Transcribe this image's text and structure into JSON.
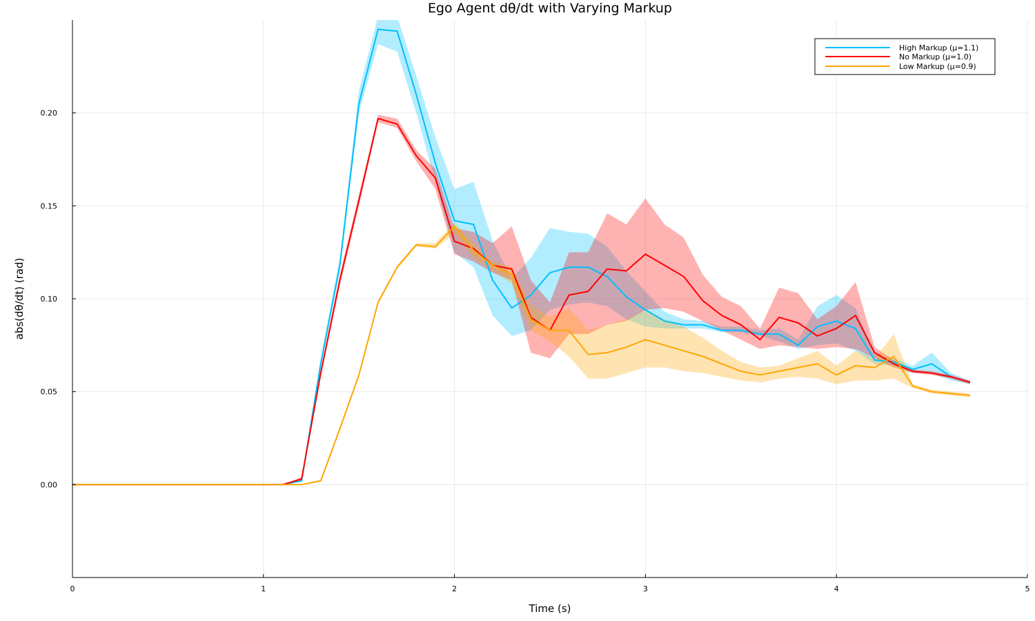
{
  "chart_data": {
    "type": "line",
    "title": "Ego Agent dθ/dt with Varying Markup",
    "xlabel": "Time (s)",
    "ylabel": "abs(dθ/dt) (rad)",
    "xlim": [
      0,
      5
    ],
    "ylim": [
      -0.05,
      0.25
    ],
    "xticks": [
      0,
      1,
      2,
      3,
      4,
      5
    ],
    "xtick_labels": [
      "0",
      "1",
      "2",
      "3",
      "4",
      "5"
    ],
    "yticks": [
      0.0,
      0.05,
      0.1,
      0.15,
      0.2
    ],
    "ytick_labels": [
      "0.00",
      "0.05",
      "0.10",
      "0.15",
      "0.20"
    ],
    "grid": true,
    "legend_position": "top-right",
    "x": [
      0,
      0.1,
      0.2,
      0.3,
      0.4,
      0.5,
      0.6,
      0.7,
      0.8,
      0.9,
      1.0,
      1.1,
      1.2,
      1.3,
      1.4,
      1.5,
      1.6,
      1.7,
      1.8,
      1.9,
      2.0,
      2.1,
      2.2,
      2.3,
      2.4,
      2.5,
      2.6,
      2.7,
      2.8,
      2.9,
      3.0,
      3.1,
      3.2,
      3.3,
      3.4,
      3.5,
      3.6,
      3.7,
      3.8,
      3.9,
      4.0,
      4.1,
      4.2,
      4.3,
      4.4,
      4.5,
      4.6,
      4.7
    ],
    "series": [
      {
        "name": "High Markup (μ=1.1)",
        "color": "#00bfff",
        "values": [
          0,
          0,
          0,
          0,
          0,
          0,
          0,
          0,
          0,
          0,
          0,
          0,
          0.002,
          0.065,
          0.118,
          0.205,
          0.245,
          0.244,
          0.21,
          0.173,
          0.142,
          0.14,
          0.11,
          0.095,
          0.102,
          0.114,
          0.117,
          0.117,
          0.112,
          0.101,
          0.094,
          0.088,
          0.086,
          0.086,
          0.083,
          0.083,
          0.081,
          0.081,
          0.075,
          0.085,
          0.088,
          0.084,
          0.067,
          0.066,
          0.062,
          0.065,
          0.058,
          0.055
        ],
        "lower": [
          0,
          0,
          0,
          0,
          0,
          0,
          0,
          0,
          0,
          0,
          0,
          0,
          0.002,
          0.063,
          0.115,
          0.2,
          0.237,
          0.233,
          0.2,
          0.163,
          0.125,
          0.117,
          0.091,
          0.08,
          0.083,
          0.094,
          0.097,
          0.098,
          0.096,
          0.089,
          0.085,
          0.084,
          0.084,
          0.084,
          0.082,
          0.082,
          0.08,
          0.077,
          0.073,
          0.075,
          0.076,
          0.072,
          0.065,
          0.064,
          0.06,
          0.06,
          0.056,
          0.054
        ],
        "upper": [
          0,
          0,
          0,
          0,
          0,
          0,
          0,
          0,
          0,
          0,
          0,
          0,
          0.003,
          0.068,
          0.122,
          0.212,
          0.252,
          0.252,
          0.22,
          0.187,
          0.159,
          0.163,
          0.131,
          0.111,
          0.122,
          0.138,
          0.136,
          0.135,
          0.128,
          0.115,
          0.104,
          0.093,
          0.089,
          0.088,
          0.085,
          0.085,
          0.083,
          0.084,
          0.078,
          0.096,
          0.102,
          0.095,
          0.07,
          0.068,
          0.064,
          0.071,
          0.06,
          0.056
        ]
      },
      {
        "name": "No Markup (μ=1.0)",
        "color": "#ff0000",
        "values": [
          0,
          0,
          0,
          0,
          0,
          0,
          0,
          0,
          0,
          0,
          0,
          0,
          0.003,
          0.06,
          0.11,
          0.153,
          0.197,
          0.194,
          0.177,
          0.165,
          0.131,
          0.127,
          0.118,
          0.116,
          0.09,
          0.083,
          0.102,
          0.104,
          0.116,
          0.115,
          0.124,
          0.118,
          0.112,
          0.099,
          0.091,
          0.086,
          0.078,
          0.09,
          0.087,
          0.08,
          0.084,
          0.091,
          0.071,
          0.065,
          0.061,
          0.06,
          0.058,
          0.055
        ],
        "lower": [
          0,
          0,
          0,
          0,
          0,
          0,
          0,
          0,
          0,
          0,
          0,
          0,
          0.002,
          0.058,
          0.107,
          0.15,
          0.195,
          0.192,
          0.174,
          0.159,
          0.124,
          0.12,
          0.114,
          0.11,
          0.071,
          0.068,
          0.081,
          0.081,
          0.086,
          0.088,
          0.094,
          0.095,
          0.093,
          0.088,
          0.083,
          0.078,
          0.073,
          0.075,
          0.074,
          0.073,
          0.074,
          0.073,
          0.068,
          0.063,
          0.06,
          0.059,
          0.057,
          0.054
        ],
        "upper": [
          0,
          0,
          0,
          0,
          0,
          0,
          0,
          0,
          0,
          0,
          0,
          0,
          0.004,
          0.062,
          0.113,
          0.156,
          0.199,
          0.197,
          0.18,
          0.17,
          0.138,
          0.136,
          0.13,
          0.139,
          0.11,
          0.098,
          0.125,
          0.125,
          0.146,
          0.14,
          0.154,
          0.14,
          0.133,
          0.113,
          0.101,
          0.096,
          0.084,
          0.106,
          0.103,
          0.089,
          0.096,
          0.109,
          0.074,
          0.067,
          0.062,
          0.061,
          0.059,
          0.056
        ]
      },
      {
        "name": "Low Markup (μ=0.9)",
        "color": "#ffa500",
        "values": [
          0,
          0,
          0,
          0,
          0,
          0,
          0,
          0,
          0,
          0,
          0,
          0,
          0,
          0.002,
          0.03,
          0.059,
          0.098,
          0.117,
          0.129,
          0.128,
          0.139,
          0.126,
          0.118,
          0.113,
          0.089,
          0.083,
          0.083,
          0.07,
          0.071,
          0.074,
          0.078,
          0.075,
          0.072,
          0.069,
          0.065,
          0.061,
          0.059,
          0.061,
          0.063,
          0.065,
          0.059,
          0.064,
          0.063,
          0.069,
          0.053,
          0.05,
          0.049,
          0.048
        ],
        "lower": [
          0,
          0,
          0,
          0,
          0,
          0,
          0,
          0,
          0,
          0,
          0,
          0,
          0,
          0.002,
          0.029,
          0.058,
          0.097,
          0.116,
          0.128,
          0.127,
          0.135,
          0.122,
          0.115,
          0.108,
          0.083,
          0.077,
          0.069,
          0.057,
          0.057,
          0.06,
          0.063,
          0.063,
          0.061,
          0.06,
          0.058,
          0.056,
          0.055,
          0.057,
          0.058,
          0.057,
          0.054,
          0.056,
          0.056,
          0.057,
          0.052,
          0.049,
          0.048,
          0.047
        ],
        "upper": [
          0,
          0,
          0,
          0,
          0,
          0,
          0,
          0,
          0,
          0,
          0,
          0,
          0,
          0.003,
          0.031,
          0.06,
          0.099,
          0.118,
          0.13,
          0.13,
          0.141,
          0.13,
          0.12,
          0.117,
          0.097,
          0.09,
          0.095,
          0.083,
          0.086,
          0.089,
          0.094,
          0.089,
          0.085,
          0.079,
          0.072,
          0.066,
          0.063,
          0.064,
          0.068,
          0.072,
          0.064,
          0.072,
          0.068,
          0.081,
          0.054,
          0.051,
          0.05,
          0.049
        ]
      }
    ]
  }
}
